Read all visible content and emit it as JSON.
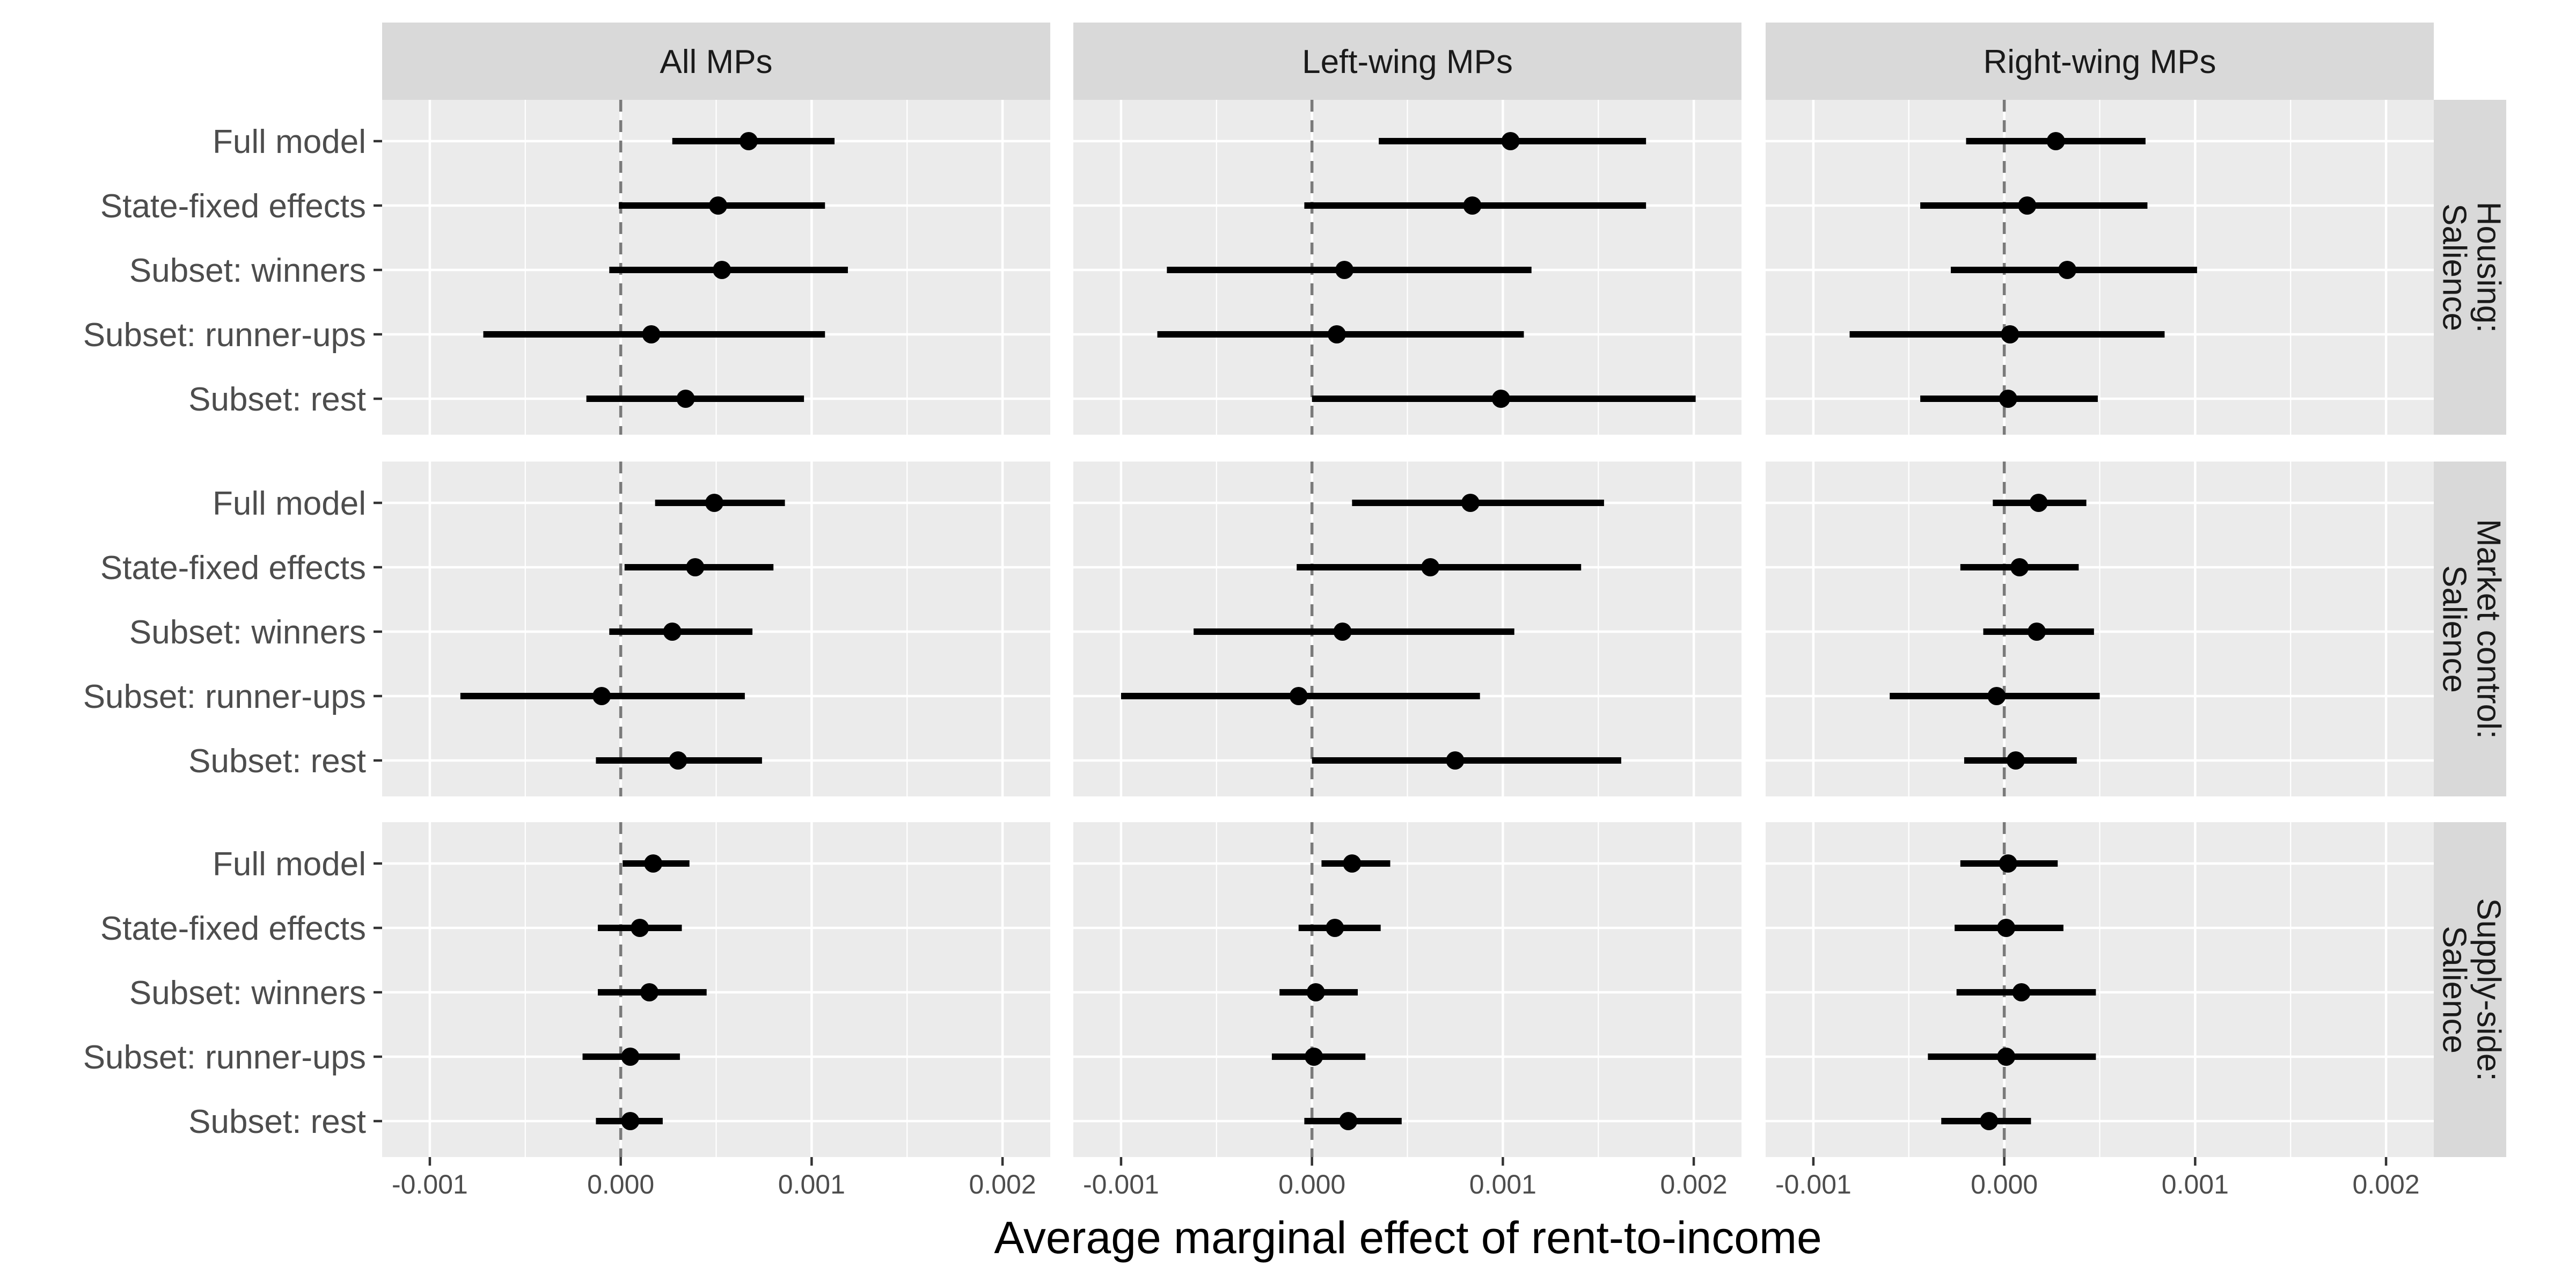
{
  "chart_data": {
    "type": "scatter",
    "subtype": "coefficient-plot-with-intervals",
    "xlabel": "Average marginal effect of rent-to-income",
    "xlim": [
      -0.00125,
      0.00225
    ],
    "x_ticks": [
      -0.001,
      0.0,
      0.001,
      0.002
    ],
    "x_tick_labels": [
      "-0.001",
      "0.000",
      "0.001",
      "0.002"
    ],
    "reference_line": 0,
    "categories": [
      "Full model",
      "State-fixed effects",
      "Subset: winners",
      "Subset: runner-ups",
      "Subset: rest"
    ],
    "columns": [
      "All MPs",
      "Left-wing MPs",
      "Right-wing MPs"
    ],
    "rows": [
      {
        "label_line1": "Housing:",
        "label_line2": "Salience"
      },
      {
        "label_line1": "Market control:",
        "label_line2": "Salience"
      },
      {
        "label_line1": "Supply-side:",
        "label_line2": "Salience"
      }
    ],
    "panels": [
      {
        "row": 0,
        "col": 0,
        "estimates": [
          {
            "model": "Full model",
            "value": 0.00067,
            "low": 0.00027,
            "high": 0.00112
          },
          {
            "model": "State-fixed effects",
            "value": 0.00051,
            "low": -1e-05,
            "high": 0.00107
          },
          {
            "model": "Subset: winners",
            "value": 0.00053,
            "low": -6e-05,
            "high": 0.00119
          },
          {
            "model": "Subset: runner-ups",
            "value": 0.00016,
            "low": -0.00072,
            "high": 0.00107
          },
          {
            "model": "Subset: rest",
            "value": 0.00034,
            "low": -0.00018,
            "high": 0.00096
          }
        ]
      },
      {
        "row": 0,
        "col": 1,
        "estimates": [
          {
            "model": "Full model",
            "value": 0.00104,
            "low": 0.00035,
            "high": 0.00175
          },
          {
            "model": "State-fixed effects",
            "value": 0.00084,
            "low": -4e-05,
            "high": 0.00175
          },
          {
            "model": "Subset: winners",
            "value": 0.00017,
            "low": -0.00076,
            "high": 0.00115
          },
          {
            "model": "Subset: runner-ups",
            "value": 0.00013,
            "low": -0.00081,
            "high": 0.00111
          },
          {
            "model": "Subset: rest",
            "value": 0.00099,
            "low": 0.0,
            "high": 0.00201
          }
        ]
      },
      {
        "row": 0,
        "col": 2,
        "estimates": [
          {
            "model": "Full model",
            "value": 0.00027,
            "low": -0.0002,
            "high": 0.00074
          },
          {
            "model": "State-fixed effects",
            "value": 0.00012,
            "low": -0.00044,
            "high": 0.00075
          },
          {
            "model": "Subset: winners",
            "value": 0.00033,
            "low": -0.00028,
            "high": 0.00101
          },
          {
            "model": "Subset: runner-ups",
            "value": 3e-05,
            "low": -0.00081,
            "high": 0.00084
          },
          {
            "model": "Subset: rest",
            "value": 2e-05,
            "low": -0.00044,
            "high": 0.00049
          }
        ]
      },
      {
        "row": 1,
        "col": 0,
        "estimates": [
          {
            "model": "Full model",
            "value": 0.00049,
            "low": 0.00018,
            "high": 0.00086
          },
          {
            "model": "State-fixed effects",
            "value": 0.00039,
            "low": 2e-05,
            "high": 0.0008
          },
          {
            "model": "Subset: winners",
            "value": 0.00027,
            "low": -6e-05,
            "high": 0.00069
          },
          {
            "model": "Subset: runner-ups",
            "value": -0.0001,
            "low": -0.00084,
            "high": 0.00065
          },
          {
            "model": "Subset: rest",
            "value": 0.0003,
            "low": -0.00013,
            "high": 0.00074
          }
        ]
      },
      {
        "row": 1,
        "col": 1,
        "estimates": [
          {
            "model": "Full model",
            "value": 0.00083,
            "low": 0.00021,
            "high": 0.00153
          },
          {
            "model": "State-fixed effects",
            "value": 0.00062,
            "low": -8e-05,
            "high": 0.00141
          },
          {
            "model": "Subset: winners",
            "value": 0.00016,
            "low": -0.00062,
            "high": 0.00106
          },
          {
            "model": "Subset: runner-ups",
            "value": -7e-05,
            "low": -0.001,
            "high": 0.00088
          },
          {
            "model": "Subset: rest",
            "value": 0.00075,
            "low": 0.0,
            "high": 0.00162
          }
        ]
      },
      {
        "row": 1,
        "col": 2,
        "estimates": [
          {
            "model": "Full model",
            "value": 0.00018,
            "low": -6e-05,
            "high": 0.00043
          },
          {
            "model": "State-fixed effects",
            "value": 8e-05,
            "low": -0.00023,
            "high": 0.00039
          },
          {
            "model": "Subset: winners",
            "value": 0.00017,
            "low": -0.00011,
            "high": 0.00047
          },
          {
            "model": "Subset: runner-ups",
            "value": -4e-05,
            "low": -0.0006,
            "high": 0.0005
          },
          {
            "model": "Subset: rest",
            "value": 6e-05,
            "low": -0.00021,
            "high": 0.00038
          }
        ]
      },
      {
        "row": 2,
        "col": 0,
        "estimates": [
          {
            "model": "Full model",
            "value": 0.00017,
            "low": 1e-05,
            "high": 0.00036
          },
          {
            "model": "State-fixed effects",
            "value": 0.0001,
            "low": -0.00012,
            "high": 0.00032
          },
          {
            "model": "Subset: winners",
            "value": 0.00015,
            "low": -0.00012,
            "high": 0.00045
          },
          {
            "model": "Subset: runner-ups",
            "value": 5e-05,
            "low": -0.0002,
            "high": 0.00031
          },
          {
            "model": "Subset: rest",
            "value": 5e-05,
            "low": -0.00013,
            "high": 0.00022
          }
        ]
      },
      {
        "row": 2,
        "col": 1,
        "estimates": [
          {
            "model": "Full model",
            "value": 0.00021,
            "low": 5e-05,
            "high": 0.00041
          },
          {
            "model": "State-fixed effects",
            "value": 0.00012,
            "low": -7e-05,
            "high": 0.00036
          },
          {
            "model": "Subset: winners",
            "value": 2e-05,
            "low": -0.00017,
            "high": 0.00024
          },
          {
            "model": "Subset: runner-ups",
            "value": 1e-05,
            "low": -0.00021,
            "high": 0.00028
          },
          {
            "model": "Subset: rest",
            "value": 0.00019,
            "low": -4e-05,
            "high": 0.00047
          }
        ]
      },
      {
        "row": 2,
        "col": 2,
        "estimates": [
          {
            "model": "Full model",
            "value": 2e-05,
            "low": -0.00023,
            "high": 0.00028
          },
          {
            "model": "State-fixed effects",
            "value": 1e-05,
            "low": -0.00026,
            "high": 0.00031
          },
          {
            "model": "Subset: winners",
            "value": 9e-05,
            "low": -0.00025,
            "high": 0.00048
          },
          {
            "model": "Subset: runner-ups",
            "value": 1e-05,
            "low": -0.0004,
            "high": 0.00048
          },
          {
            "model": "Subset: rest",
            "value": -8e-05,
            "low": -0.00033,
            "high": 0.00014
          }
        ]
      }
    ],
    "grid": true,
    "legend": "none"
  }
}
